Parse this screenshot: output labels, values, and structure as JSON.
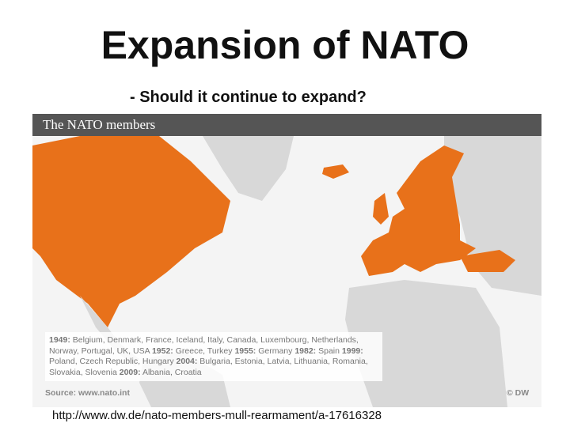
{
  "title": "Expansion of NATO",
  "subtitle": "- Should it continue to expand?",
  "map": {
    "title": "The NATO members",
    "timeline": [
      {
        "year": "1949:",
        "members": "Belgium, Denmark, France, Iceland, Italy, Canada, Luxembourg, Netherlands, Norway, Portugal, UK, USA"
      },
      {
        "year": "1952:",
        "members": "Greece, Turkey"
      },
      {
        "year": "1955:",
        "members": "Germany"
      },
      {
        "year": "1982:",
        "members": "Spain"
      },
      {
        "year": "1999:",
        "members": "Poland, Czech Republic, Hungary"
      },
      {
        "year": "2004:",
        "members": "Bulgaria, Estonia, Latvia, Lithuania, Romania, Slovakia, Slovenia"
      },
      {
        "year": "2009:",
        "members": "Albania, Croatia"
      }
    ],
    "source": "Source: www.nato.int",
    "credit": "© DW"
  },
  "url": "http://www.dw.de/nato-members-mull-rearmament/a-17616328"
}
